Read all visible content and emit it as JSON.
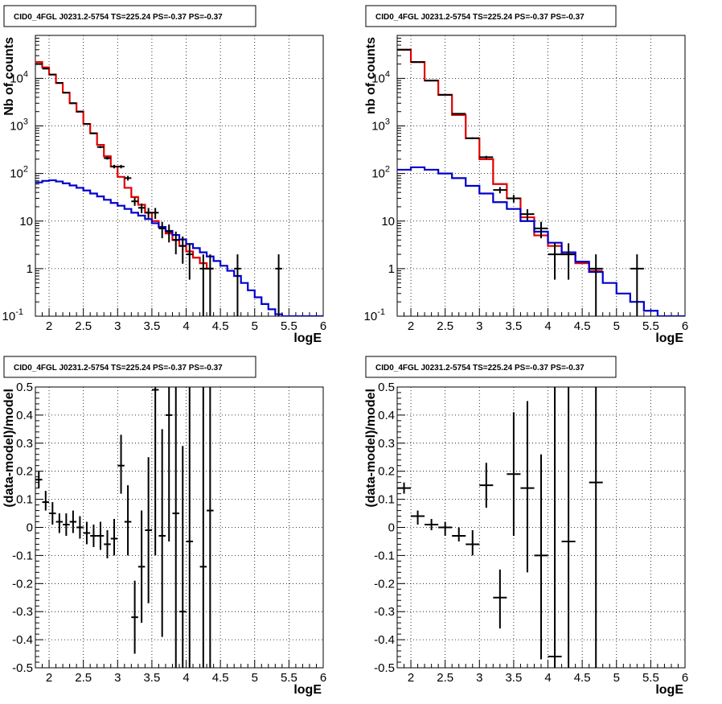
{
  "chart_data": [
    {
      "type": "step",
      "title": "CID0_4FGL J0231.2-5754 TS=225.24 PS=-0.37 PS=-0.37",
      "xlabel": "logE",
      "ylabel": "Nb of counts",
      "xlim": [
        1.8,
        6.0
      ],
      "ylim": [
        0.1,
        80000
      ],
      "yscale": "log",
      "grid": true,
      "xticks": [
        "2",
        "2.5",
        "3",
        "3.5",
        "4",
        "4.5",
        "5",
        "5.5",
        "6"
      ],
      "yticks": [
        "10^-1",
        "1",
        "10",
        "10^2",
        "10^3",
        "10^4"
      ],
      "bin_width": 0.1,
      "series": [
        {
          "color": "#e00000",
          "bins": [
            1.8,
            1.9,
            2.0,
            2.1,
            2.2,
            2.3,
            2.4,
            2.5,
            2.6,
            2.7,
            2.8,
            2.9,
            3.0,
            3.1,
            3.2,
            3.3,
            3.4,
            3.5,
            3.6,
            3.7,
            3.8,
            3.9,
            4.0,
            4.1,
            4.2,
            4.3
          ],
          "values": [
            22000,
            17000,
            12000,
            8000,
            5000,
            3000,
            2000,
            1100,
            700,
            400,
            230,
            140,
            85,
            50,
            32,
            22,
            15,
            10,
            7.5,
            5.5,
            4,
            3,
            2.3,
            1.7,
            1.3,
            1.0
          ]
        },
        {
          "color": "#0000cc",
          "bins": [
            1.8,
            1.9,
            2.0,
            2.1,
            2.2,
            2.3,
            2.4,
            2.5,
            2.6,
            2.7,
            2.8,
            2.9,
            3.0,
            3.1,
            3.2,
            3.3,
            3.4,
            3.5,
            3.6,
            3.7,
            3.8,
            3.9,
            4.0,
            4.1,
            4.2,
            4.3,
            4.4,
            4.5,
            4.6,
            4.7,
            4.8,
            4.9,
            5.0,
            5.1,
            5.2,
            5.3,
            5.4,
            5.5,
            5.6,
            5.7,
            5.8,
            5.9
          ],
          "values": [
            65,
            70,
            72,
            68,
            62,
            56,
            50,
            44,
            38,
            33,
            28,
            24,
            21,
            18,
            15,
            13,
            11,
            9,
            7.5,
            6.2,
            5.1,
            4.1,
            3.3,
            2.7,
            2.2,
            1.8,
            1.45,
            1.15,
            0.9,
            0.7,
            0.5,
            0.35,
            0.25,
            0.18,
            0.14,
            0.11,
            0.1,
            0.1,
            0.1,
            0.1,
            0.1,
            0.1
          ]
        }
      ],
      "points": [
        {
          "x": 1.85,
          "y": 20000
        },
        {
          "x": 1.95,
          "y": 16000
        },
        {
          "x": 2.05,
          "y": 12000
        },
        {
          "x": 2.15,
          "y": 8000
        },
        {
          "x": 2.25,
          "y": 5000
        },
        {
          "x": 2.35,
          "y": 3000
        },
        {
          "x": 2.45,
          "y": 2000
        },
        {
          "x": 2.55,
          "y": 1100
        },
        {
          "x": 2.65,
          "y": 700
        },
        {
          "x": 2.75,
          "y": 360
        },
        {
          "x": 2.85,
          "y": 210
        },
        {
          "x": 2.95,
          "y": 140
        },
        {
          "x": 3.05,
          "y": 140
        },
        {
          "x": 3.15,
          "y": 80
        },
        {
          "x": 3.25,
          "y": 26
        },
        {
          "x": 3.35,
          "y": 19
        },
        {
          "x": 3.45,
          "y": 15
        },
        {
          "x": 3.55,
          "y": 15
        },
        {
          "x": 3.65,
          "y": 7
        },
        {
          "x": 3.75,
          "y": 6
        },
        {
          "x": 3.85,
          "y": 4
        },
        {
          "x": 3.95,
          "y": 3
        },
        {
          "x": 4.05,
          "y": 2
        },
        {
          "x": 4.25,
          "y": 1
        },
        {
          "x": 4.35,
          "y": 1
        },
        {
          "x": 4.75,
          "y": 1
        },
        {
          "x": 5.35,
          "y": 1
        }
      ]
    },
    {
      "type": "step",
      "title": "CID0_4FGL J0231.2-5754 TS=225.24 PS=-0.37 PS=-0.37",
      "xlabel": "logE",
      "ylabel": "nb of counts",
      "xlim": [
        1.8,
        6.0
      ],
      "ylim": [
        0.1,
        80000
      ],
      "yscale": "log",
      "grid": true,
      "xticks": [
        "2",
        "2.5",
        "3",
        "3.5",
        "4",
        "4.5",
        "5",
        "5.5",
        "6"
      ],
      "yticks": [
        "10^-1",
        "1",
        "10",
        "10^2",
        "10^3",
        "10^4"
      ],
      "bin_width": 0.2,
      "series": [
        {
          "color": "#e00000",
          "bins": [
            1.8,
            2.0,
            2.2,
            2.4,
            2.6,
            2.8,
            3.0,
            3.2,
            3.4,
            3.6,
            3.8,
            4.0,
            4.2,
            4.4,
            4.6
          ],
          "values": [
            40000,
            22000,
            9000,
            4500,
            1700,
            550,
            200,
            60,
            30,
            12,
            5,
            3,
            2,
            1.3,
            0.9
          ]
        },
        {
          "color": "#0000cc",
          "bins": [
            1.8,
            2.0,
            2.2,
            2.4,
            2.6,
            2.8,
            3.0,
            3.2,
            3.4,
            3.6,
            3.8,
            4.0,
            4.2,
            4.4,
            4.6,
            4.8,
            5.0,
            5.2,
            5.4,
            5.6,
            5.8
          ],
          "values": [
            120,
            135,
            120,
            100,
            80,
            55,
            38,
            25,
            18,
            10,
            6,
            3.5,
            2.2,
            1.4,
            0.85,
            0.5,
            0.3,
            0.2,
            0.13,
            0.1,
            0.1
          ]
        }
      ],
      "points": [
        {
          "x": 1.9,
          "y": 40000
        },
        {
          "x": 2.1,
          "y": 22000
        },
        {
          "x": 2.3,
          "y": 9000
        },
        {
          "x": 2.5,
          "y": 4500
        },
        {
          "x": 2.7,
          "y": 1800
        },
        {
          "x": 2.9,
          "y": 550
        },
        {
          "x": 3.1,
          "y": 220
        },
        {
          "x": 3.3,
          "y": 45
        },
        {
          "x": 3.5,
          "y": 30
        },
        {
          "x": 3.7,
          "y": 14
        },
        {
          "x": 3.9,
          "y": 7
        },
        {
          "x": 4.1,
          "y": 2
        },
        {
          "x": 4.3,
          "y": 2
        },
        {
          "x": 4.7,
          "y": 1
        },
        {
          "x": 5.3,
          "y": 1
        }
      ]
    },
    {
      "type": "errorbar",
      "title": "CID0_4FGL J0231.2-5754 TS=225.24 PS=-0.37 PS=-0.37",
      "xlabel": "logE",
      "ylabel": "(data-model)/model",
      "xlim": [
        1.8,
        6.0
      ],
      "ylim": [
        -0.5,
        0.5
      ],
      "grid": true,
      "xticks": [
        "2",
        "2.5",
        "3",
        "3.5",
        "4",
        "4.5",
        "5",
        "5.5",
        "6"
      ],
      "yticks": [
        "-0.5",
        "-0.4",
        "-0.3",
        "-0.2",
        "-0.1",
        "0",
        "0.1",
        "0.2",
        "0.3",
        "0.4",
        "0.5"
      ],
      "bin_width": 0.1,
      "points": [
        {
          "x": 1.85,
          "y": 0.17,
          "lo": 0.14,
          "hi": 0.2
        },
        {
          "x": 1.95,
          "y": 0.09,
          "lo": 0.06,
          "hi": 0.13
        },
        {
          "x": 2.05,
          "y": 0.05,
          "lo": 0.01,
          "hi": 0.09
        },
        {
          "x": 2.15,
          "y": 0.02,
          "lo": -0.02,
          "hi": 0.05
        },
        {
          "x": 2.25,
          "y": 0.01,
          "lo": -0.03,
          "hi": 0.05
        },
        {
          "x": 2.35,
          "y": 0.02,
          "lo": -0.02,
          "hi": 0.06
        },
        {
          "x": 2.45,
          "y": 0.0,
          "lo": -0.04,
          "hi": 0.04
        },
        {
          "x": 2.55,
          "y": -0.02,
          "lo": -0.06,
          "hi": 0.02
        },
        {
          "x": 2.65,
          "y": -0.03,
          "lo": -0.07,
          "hi": 0.01
        },
        {
          "x": 2.75,
          "y": -0.03,
          "lo": -0.08,
          "hi": 0.02
        },
        {
          "x": 2.85,
          "y": -0.06,
          "lo": -0.11,
          "hi": -0.01
        },
        {
          "x": 2.95,
          "y": -0.04,
          "lo": -0.1,
          "hi": 0.03
        },
        {
          "x": 3.05,
          "y": 0.22,
          "lo": 0.12,
          "hi": 0.33
        },
        {
          "x": 3.15,
          "y": 0.02,
          "lo": -0.1,
          "hi": 0.15
        },
        {
          "x": 3.25,
          "y": -0.32,
          "lo": -0.45,
          "hi": -0.19
        },
        {
          "x": 3.35,
          "y": -0.14,
          "lo": -0.34,
          "hi": 0.06
        },
        {
          "x": 3.45,
          "y": -0.01,
          "lo": -0.27,
          "hi": 0.25
        },
        {
          "x": 3.55,
          "y": 0.49,
          "lo": -0.1,
          "hi": 1.0
        },
        {
          "x": 3.65,
          "y": -0.03,
          "lo": -0.39,
          "hi": 0.35
        },
        {
          "x": 3.75,
          "y": 0.4,
          "lo": -0.05,
          "hi": 1.0
        },
        {
          "x": 3.85,
          "y": 0.05,
          "lo": -0.5,
          "hi": 1.0
        },
        {
          "x": 3.95,
          "y": -0.3,
          "lo": -0.5,
          "hi": 0.29
        },
        {
          "x": 4.05,
          "y": -0.05,
          "lo": -0.5,
          "hi": 1.0
        },
        {
          "x": 4.25,
          "y": -0.14,
          "lo": -0.5,
          "hi": 1.0
        },
        {
          "x": 4.35,
          "y": 0.06,
          "lo": -0.5,
          "hi": 1.0
        }
      ]
    },
    {
      "type": "errorbar",
      "title": "CID0_4FGL J0231.2-5754 TS=225.24 PS=-0.37 PS=-0.37",
      "xlabel": "logE",
      "ylabel": "(data-model)/model",
      "xlim": [
        1.8,
        6.0
      ],
      "ylim": [
        -0.5,
        0.5
      ],
      "grid": true,
      "xticks": [
        "2",
        "2.5",
        "3",
        "3.5",
        "4",
        "4.5",
        "5",
        "5.5",
        "6"
      ],
      "yticks": [
        "-0.5",
        "-0.4",
        "-0.3",
        "-0.2",
        "-0.1",
        "0",
        "0.1",
        "0.2",
        "0.3",
        "0.4",
        "0.5"
      ],
      "bin_width": 0.2,
      "points": [
        {
          "x": 1.9,
          "y": 0.14,
          "lo": 0.12,
          "hi": 0.16
        },
        {
          "x": 2.1,
          "y": 0.04,
          "lo": 0.01,
          "hi": 0.06
        },
        {
          "x": 2.3,
          "y": 0.01,
          "lo": -0.01,
          "hi": 0.03
        },
        {
          "x": 2.5,
          "y": 0.0,
          "lo": -0.03,
          "hi": 0.02
        },
        {
          "x": 2.7,
          "y": -0.03,
          "lo": -0.05,
          "hi": 0.0
        },
        {
          "x": 2.9,
          "y": -0.06,
          "lo": -0.1,
          "hi": -0.01
        },
        {
          "x": 3.1,
          "y": 0.15,
          "lo": 0.07,
          "hi": 0.23
        },
        {
          "x": 3.3,
          "y": -0.25,
          "lo": -0.36,
          "hi": -0.15
        },
        {
          "x": 3.5,
          "y": 0.19,
          "lo": -0.03,
          "hi": 0.41
        },
        {
          "x": 3.7,
          "y": 0.14,
          "lo": -0.16,
          "hi": 0.45
        },
        {
          "x": 3.9,
          "y": -0.1,
          "lo": -0.47,
          "hi": 0.26
        },
        {
          "x": 4.1,
          "y": -0.46,
          "lo": -0.5,
          "hi": 1.0
        },
        {
          "x": 4.3,
          "y": -0.05,
          "lo": -0.5,
          "hi": 1.0
        },
        {
          "x": 4.7,
          "y": 0.16,
          "lo": -0.5,
          "hi": 1.0
        }
      ]
    }
  ]
}
